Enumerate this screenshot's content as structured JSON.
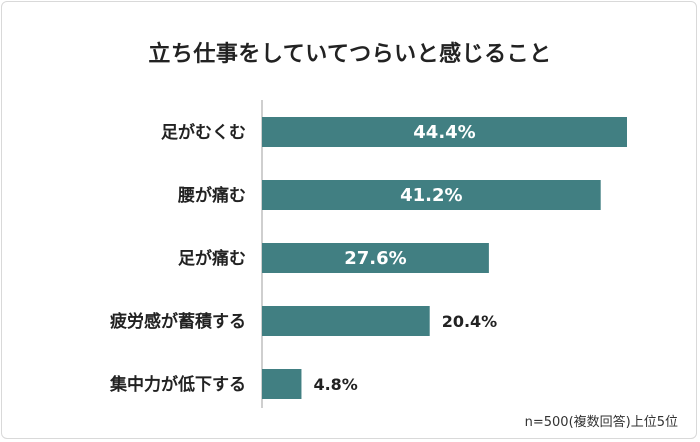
{
  "colors": {
    "bar": "#417f82",
    "axis": "#bfbfbf"
  },
  "chart_data": {
    "type": "bar",
    "orientation": "horizontal",
    "title": "立ち仕事をしていてつらいと感じること",
    "categories": [
      "足がむくむ",
      "腰が痛む",
      "足が痛む",
      "疲労感が蓄積する",
      "集中力が低下する"
    ],
    "values": [
      44.4,
      41.2,
      27.6,
      20.4,
      4.8
    ],
    "value_labels": [
      "44.4%",
      "41.2%",
      "27.6%",
      "20.4%",
      "4.8%"
    ],
    "xlim": [
      0,
      45
    ],
    "grid": false,
    "legend": "none"
  },
  "note": "n=500(複数回答)上位5位"
}
